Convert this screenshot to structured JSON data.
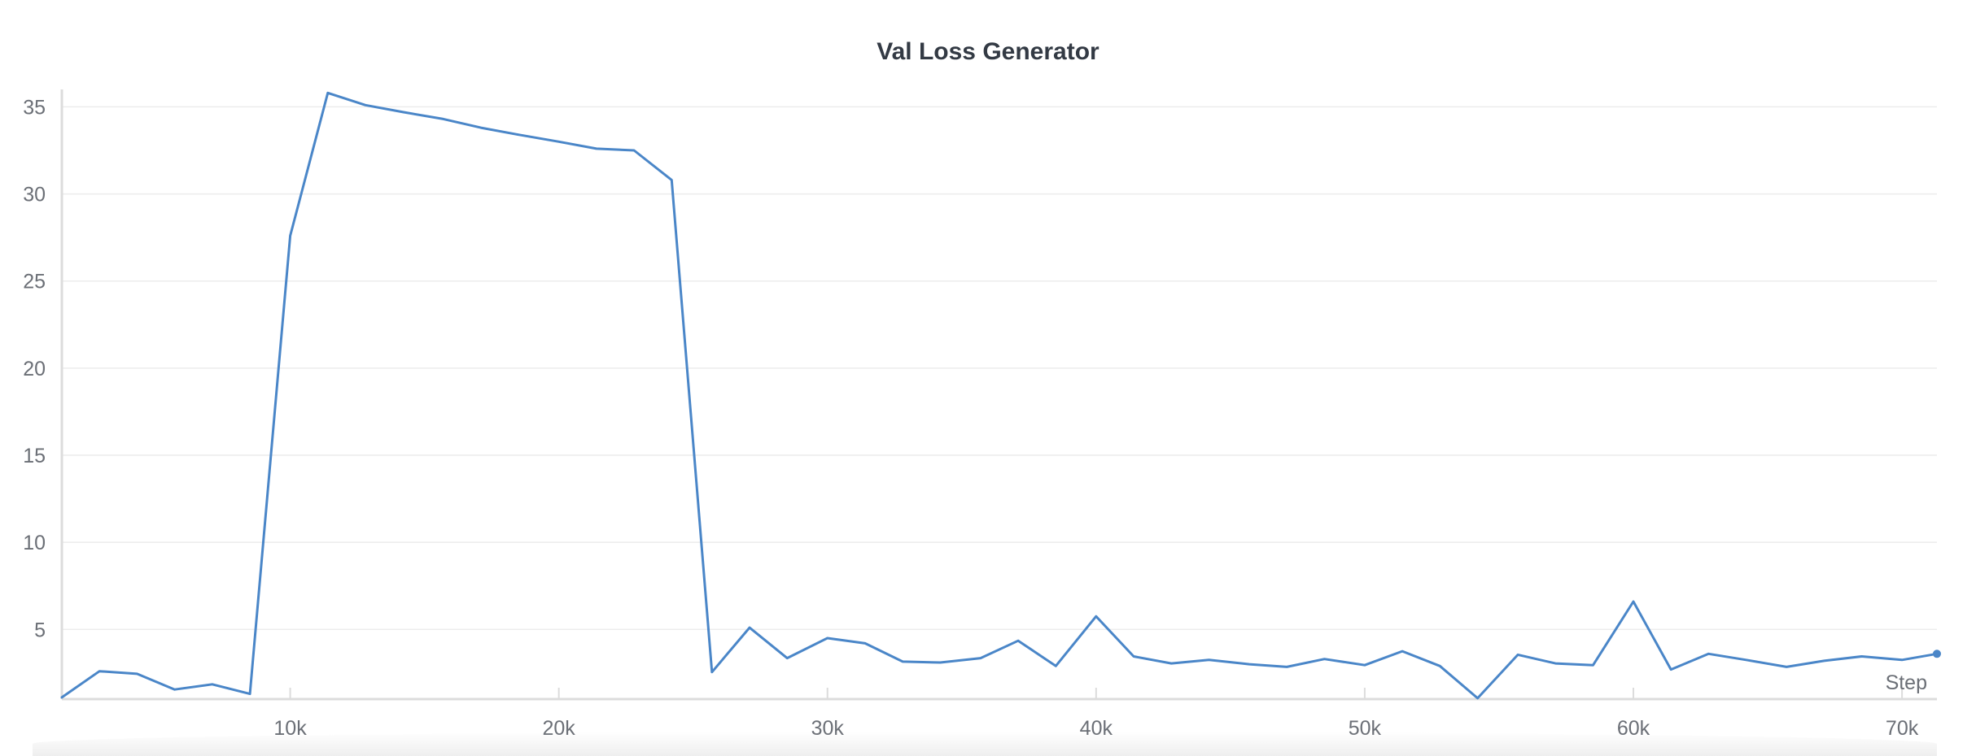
{
  "chart_data": {
    "type": "line",
    "title": "Val Loss Generator",
    "xlabel": "Step",
    "ylabel": "",
    "xlim": [
      1500,
      71300
    ],
    "ylim": [
      1,
      36
    ],
    "x_ticks": [
      10000,
      20000,
      30000,
      40000,
      50000,
      60000,
      70000
    ],
    "x_tick_labels": [
      "10k",
      "20k",
      "30k",
      "40k",
      "50k",
      "60k",
      "70k"
    ],
    "y_ticks": [
      5,
      10,
      15,
      20,
      25,
      30,
      35
    ],
    "y_tick_labels": [
      "5",
      "10",
      "15",
      "20",
      "25",
      "30",
      "35"
    ],
    "grid": true,
    "legend": "none",
    "series": [
      {
        "color": "#4a86c8",
        "x": [
          1500,
          2900,
          4300,
          5700,
          7100,
          8500,
          10000,
          11400,
          12800,
          14200,
          15700,
          17100,
          18500,
          20000,
          21400,
          22800,
          24200,
          25700,
          27100,
          28500,
          30000,
          31400,
          32800,
          34200,
          35700,
          37100,
          38500,
          40000,
          41400,
          42800,
          44200,
          45700,
          47100,
          48500,
          50000,
          51400,
          52800,
          54200,
          55700,
          57100,
          58500,
          60000,
          61400,
          62800,
          64200,
          65700,
          67100,
          68500,
          70000,
          71300
        ],
        "y": [
          1.1,
          2.6,
          2.45,
          1.55,
          1.85,
          1.3,
          27.6,
          35.8,
          35.1,
          34.7,
          34.3,
          33.8,
          33.4,
          33.0,
          32.6,
          32.5,
          30.8,
          2.55,
          5.1,
          3.35,
          4.5,
          4.2,
          3.15,
          3.1,
          3.35,
          4.35,
          2.9,
          5.75,
          3.45,
          3.05,
          3.25,
          3.0,
          2.85,
          3.3,
          2.95,
          3.75,
          2.9,
          1.05,
          3.55,
          3.05,
          2.95,
          6.6,
          2.7,
          3.6,
          3.25,
          2.85,
          3.2,
          3.45,
          3.25,
          3.6
        ]
      }
    ]
  }
}
